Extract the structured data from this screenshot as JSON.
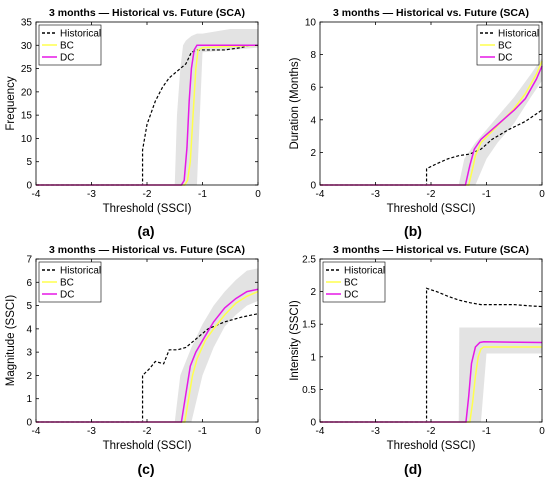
{
  "figure": {
    "panel_labels": [
      "(a)",
      "(b)",
      "(c)",
      "(d)"
    ]
  },
  "colors": {
    "historical": "#000000",
    "bc": "#ffff4d",
    "dc": "#e619e6",
    "band": "#d9d9d9"
  },
  "chart_data": [
    {
      "type": "line",
      "title": "3 months — Historical vs. Future (SCA)",
      "xlabel": "Threshold (SSCI)",
      "ylabel": "Frequency",
      "xlim": [
        -4,
        0
      ],
      "ylim": [
        0,
        35
      ],
      "xticks": [
        "-4",
        "-3",
        "-2",
        "-1",
        "0"
      ],
      "yticks": [
        "0",
        "5",
        "10",
        "15",
        "20",
        "25",
        "30",
        "35"
      ],
      "legend": [
        "Historical",
        "BC",
        "DC"
      ],
      "legend_position": "top-left",
      "series": [
        {
          "name": "Historical",
          "style": "dashed",
          "x": [
            -4,
            -2.08,
            -2.08,
            -2.0,
            -1.85,
            -1.72,
            -1.6,
            -1.5,
            -1.4,
            -1.3,
            -1.2,
            -1.1,
            -0.6,
            -0.3,
            -0.15,
            0
          ],
          "y": [
            0,
            0,
            7.5,
            13,
            18,
            21,
            23,
            24,
            25,
            26,
            28.5,
            29,
            29,
            29.5,
            30,
            30
          ]
        },
        {
          "name": "BC",
          "style": "solid",
          "x": [
            -4,
            -1.32,
            -1.27,
            -1.22,
            -1.17,
            -1.12,
            -1.08,
            -1.0,
            0
          ],
          "y": [
            0,
            0,
            1,
            5,
            15,
            25,
            29,
            29.5,
            30
          ]
        },
        {
          "name": "DC",
          "style": "solid",
          "x": [
            -4,
            -1.38,
            -1.33,
            -1.28,
            -1.24,
            -1.2,
            -1.15,
            -1.1,
            0
          ],
          "y": [
            0,
            0,
            1,
            8,
            18,
            25,
            29,
            30,
            30
          ]
        }
      ],
      "bands": [
        {
          "x": [
            -1.5,
            -1.46,
            -1.4,
            -1.35,
            -1.3,
            -1.2,
            -1.1,
            -1.0,
            -0.5,
            0
          ],
          "upper": [
            0,
            15,
            25,
            30,
            31,
            32,
            32.5,
            32.5,
            33.5,
            33.5
          ],
          "lower": [
            0,
            0,
            0,
            0,
            0,
            0,
            0,
            28.5,
            29,
            29.5
          ]
        }
      ]
    },
    {
      "type": "line",
      "title": "3 months — Historical vs. Future (SCA)",
      "xlabel": "Threshold (SSCI)",
      "ylabel": "Duration (Months)",
      "xlim": [
        -4,
        0
      ],
      "ylim": [
        0,
        10
      ],
      "xticks": [
        "-4",
        "-3",
        "-2",
        "-1",
        "0"
      ],
      "yticks": [
        "0",
        "2",
        "4",
        "6",
        "8",
        "10"
      ],
      "legend": [
        "Historical",
        "BC",
        "DC"
      ],
      "legend_position": "top-right",
      "series": [
        {
          "name": "Historical",
          "style": "dashed",
          "x": [
            -4,
            -2.08,
            -2.08,
            -1.9,
            -1.7,
            -1.5,
            -1.3,
            -1.1,
            -0.9,
            -0.6,
            -0.3,
            0
          ],
          "y": [
            0,
            0,
            1.0,
            1.3,
            1.6,
            1.8,
            1.9,
            2.2,
            2.8,
            3.4,
            3.9,
            4.6
          ]
        },
        {
          "name": "BC",
          "style": "solid",
          "x": [
            -4,
            -1.32,
            -1.25,
            -1.2,
            -1.1,
            -0.9,
            -0.7,
            -0.5,
            -0.3,
            -0.1,
            0
          ],
          "y": [
            0,
            0,
            1.0,
            1.8,
            2.6,
            3.3,
            4.0,
            4.7,
            5.6,
            6.8,
            7.6
          ]
        },
        {
          "name": "DC",
          "style": "solid",
          "x": [
            -4,
            -1.38,
            -1.3,
            -1.22,
            -1.1,
            -0.9,
            -0.7,
            -0.5,
            -0.3,
            -0.1,
            0
          ],
          "y": [
            0,
            0,
            1.2,
            2.2,
            2.8,
            3.4,
            4.0,
            4.6,
            5.3,
            6.5,
            7.3
          ]
        }
      ],
      "bands": [
        {
          "x": [
            -1.5,
            -1.4,
            -1.2,
            -1.0,
            -0.8,
            -0.5,
            -0.2,
            0
          ],
          "upper": [
            0,
            1.6,
            2.6,
            3.4,
            4.2,
            5.4,
            6.8,
            7.8
          ],
          "lower": [
            0,
            0,
            0,
            1.6,
            2.6,
            3.8,
            5.4,
            6.4
          ]
        }
      ]
    },
    {
      "type": "line",
      "title": "3 months — Historical vs. Future (SCA)",
      "xlabel": "Threshold (SSCI)",
      "ylabel": "Magnitude (SSCI)",
      "xlim": [
        -4,
        0
      ],
      "ylim": [
        0,
        7
      ],
      "xticks": [
        "-4",
        "-3",
        "-2",
        "-1",
        "0"
      ],
      "yticks": [
        "0",
        "1",
        "2",
        "3",
        "4",
        "5",
        "6",
        "7"
      ],
      "legend": [
        "Historical",
        "BC",
        "DC"
      ],
      "legend_position": "top-left",
      "series": [
        {
          "name": "Historical",
          "style": "dashed",
          "x": [
            -4,
            -2.08,
            -2.08,
            -1.95,
            -1.85,
            -1.7,
            -1.6,
            -1.45,
            -1.3,
            -1.1,
            -0.9,
            -0.6,
            -0.3,
            0
          ],
          "y": [
            0,
            0,
            2.0,
            2.3,
            2.6,
            2.5,
            3.1,
            3.1,
            3.2,
            3.6,
            4.0,
            4.3,
            4.5,
            4.65
          ]
        },
        {
          "name": "BC",
          "style": "solid",
          "x": [
            -4,
            -1.32,
            -1.25,
            -1.18,
            -1.1,
            -0.95,
            -0.8,
            -0.6,
            -0.4,
            -0.2,
            0
          ],
          "y": [
            0,
            0,
            1.0,
            2.0,
            2.7,
            3.5,
            4.0,
            4.6,
            5.1,
            5.4,
            5.6
          ]
        },
        {
          "name": "DC",
          "style": "solid",
          "x": [
            -4,
            -1.38,
            -1.3,
            -1.22,
            -1.12,
            -0.95,
            -0.8,
            -0.6,
            -0.4,
            -0.2,
            0
          ],
          "y": [
            0,
            0,
            1.2,
            2.4,
            3.0,
            3.7,
            4.3,
            4.9,
            5.3,
            5.6,
            5.7
          ]
        }
      ],
      "bands": [
        {
          "x": [
            -1.5,
            -1.4,
            -1.2,
            -1.0,
            -0.8,
            -0.6,
            -0.4,
            -0.2,
            0
          ],
          "upper": [
            0,
            2.0,
            3.2,
            4.2,
            5.0,
            5.6,
            6.1,
            6.5,
            6.6
          ],
          "lower": [
            0,
            0,
            0,
            2.0,
            3.2,
            4.1,
            4.6,
            5.0,
            5.2
          ]
        }
      ]
    },
    {
      "type": "line",
      "title": "3 months — Historical vs. Future (SCA)",
      "xlabel": "Threshold (SSCI)",
      "ylabel": "Intensity (SSCI)",
      "xlim": [
        -4,
        0
      ],
      "ylim": [
        0,
        2.5
      ],
      "xticks": [
        "-4",
        "-3",
        "-2",
        "-1",
        "0"
      ],
      "yticks": [
        "0",
        "0.5",
        "1",
        "1.5",
        "2",
        "2.5"
      ],
      "legend": [
        "Historical",
        "BC",
        "DC"
      ],
      "legend_position": "top-left",
      "series": [
        {
          "name": "Historical",
          "style": "dashed",
          "x": [
            -4,
            -2.08,
            -2.08,
            -1.9,
            -1.7,
            -1.5,
            -1.3,
            -1.1,
            -0.5,
            -0.2,
            0
          ],
          "y": [
            0,
            0,
            2.05,
            2.0,
            1.93,
            1.87,
            1.83,
            1.8,
            1.8,
            1.78,
            1.77
          ]
        },
        {
          "name": "BC",
          "style": "solid",
          "x": [
            -4,
            -1.3,
            -1.25,
            -1.2,
            -1.15,
            -1.1,
            -1.05,
            0
          ],
          "y": [
            0,
            0,
            0.3,
            0.7,
            1.0,
            1.12,
            1.15,
            1.15
          ]
        },
        {
          "name": "DC",
          "style": "solid",
          "x": [
            -4,
            -1.37,
            -1.32,
            -1.27,
            -1.2,
            -1.12,
            -1.05,
            0
          ],
          "y": [
            0,
            0,
            0.4,
            0.9,
            1.15,
            1.22,
            1.23,
            1.22
          ]
        }
      ],
      "bands": [
        {
          "x": [
            -1.5,
            -1.49,
            -1.2,
            -1.1,
            -1.0,
            0
          ],
          "upper": [
            0,
            1.45,
            1.45,
            1.45,
            1.45,
            1.45
          ],
          "lower": [
            0,
            0,
            0,
            0,
            1.05,
            1.05
          ]
        }
      ]
    }
  ]
}
